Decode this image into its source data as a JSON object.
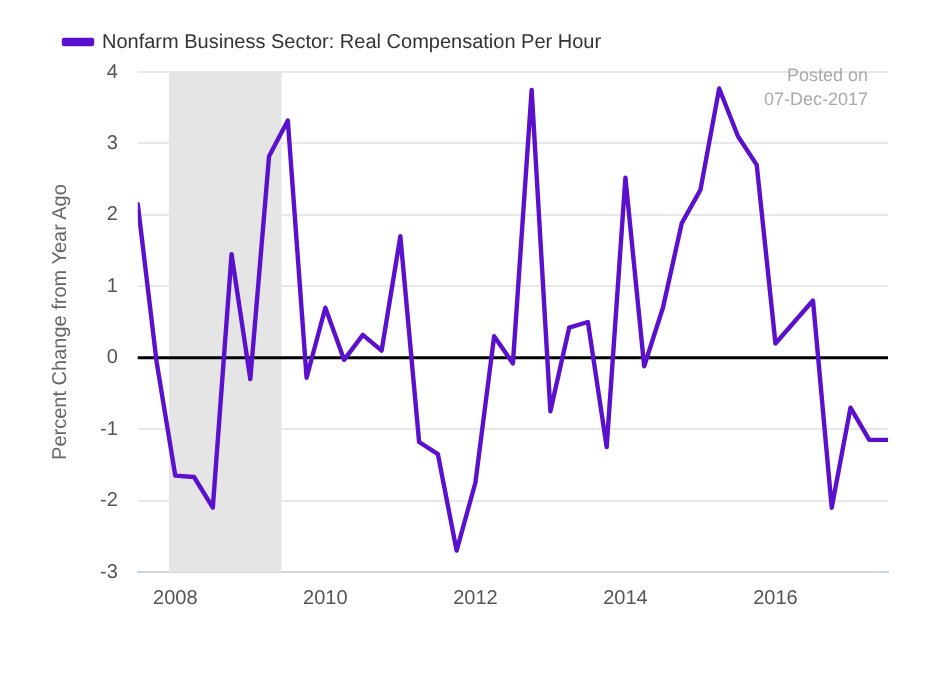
{
  "chart_data": {
    "type": "line",
    "ylabel": "Percent Change from Year Ago",
    "x": [
      "2007-07",
      "2007-10",
      "2008-01",
      "2008-04",
      "2008-07",
      "2008-10",
      "2009-01",
      "2009-04",
      "2009-07",
      "2009-10",
      "2010-01",
      "2010-04",
      "2010-07",
      "2010-10",
      "2011-01",
      "2011-04",
      "2011-07",
      "2011-10",
      "2012-01",
      "2012-04",
      "2012-07",
      "2012-10",
      "2013-01",
      "2013-04",
      "2013-07",
      "2013-10",
      "2014-01",
      "2014-04",
      "2014-07",
      "2014-10",
      "2015-01",
      "2015-04",
      "2015-07",
      "2015-10",
      "2016-01",
      "2016-04",
      "2016-07",
      "2016-10",
      "2017-01",
      "2017-04",
      "2017-07"
    ],
    "series": [
      {
        "name": "Nonfarm Business Sector: Real Compensation Per Hour",
        "color": "#5a10cc",
        "values": [
          2.15,
          -0.05,
          -1.65,
          -1.67,
          -2.1,
          1.45,
          -0.3,
          2.82,
          3.32,
          -0.28,
          0.7,
          -0.03,
          0.32,
          0.1,
          1.7,
          -1.18,
          -1.35,
          -2.7,
          -1.75,
          0.3,
          -0.08,
          3.75,
          -0.75,
          0.42,
          0.5,
          -1.25,
          2.52,
          -0.12,
          0.7,
          1.88,
          2.35,
          3.77,
          3.1,
          2.7,
          0.2,
          0.5,
          0.8,
          -2.1,
          -0.7,
          -1.15,
          -1.15
        ]
      }
    ],
    "xlim": [
      "2007-07",
      "2017-07"
    ],
    "xticks": [
      "2008",
      "2010",
      "2012",
      "2014",
      "2016"
    ],
    "ylim": [
      -3,
      4
    ],
    "yticks": [
      -3,
      -2,
      -1,
      0,
      1,
      2,
      3,
      4
    ],
    "grid": "y",
    "legend": "top left",
    "marker": "none",
    "line_style": "solid",
    "ref_lines": [
      {
        "axis": "y",
        "value": 0,
        "color": "#000000"
      }
    ],
    "bands": [
      {
        "axis": "x",
        "from": "2007-12",
        "to": "2009-06",
        "color": "#e5e5e5"
      }
    ],
    "annotations": [
      "Posted on",
      "07-Dec-2017"
    ]
  }
}
